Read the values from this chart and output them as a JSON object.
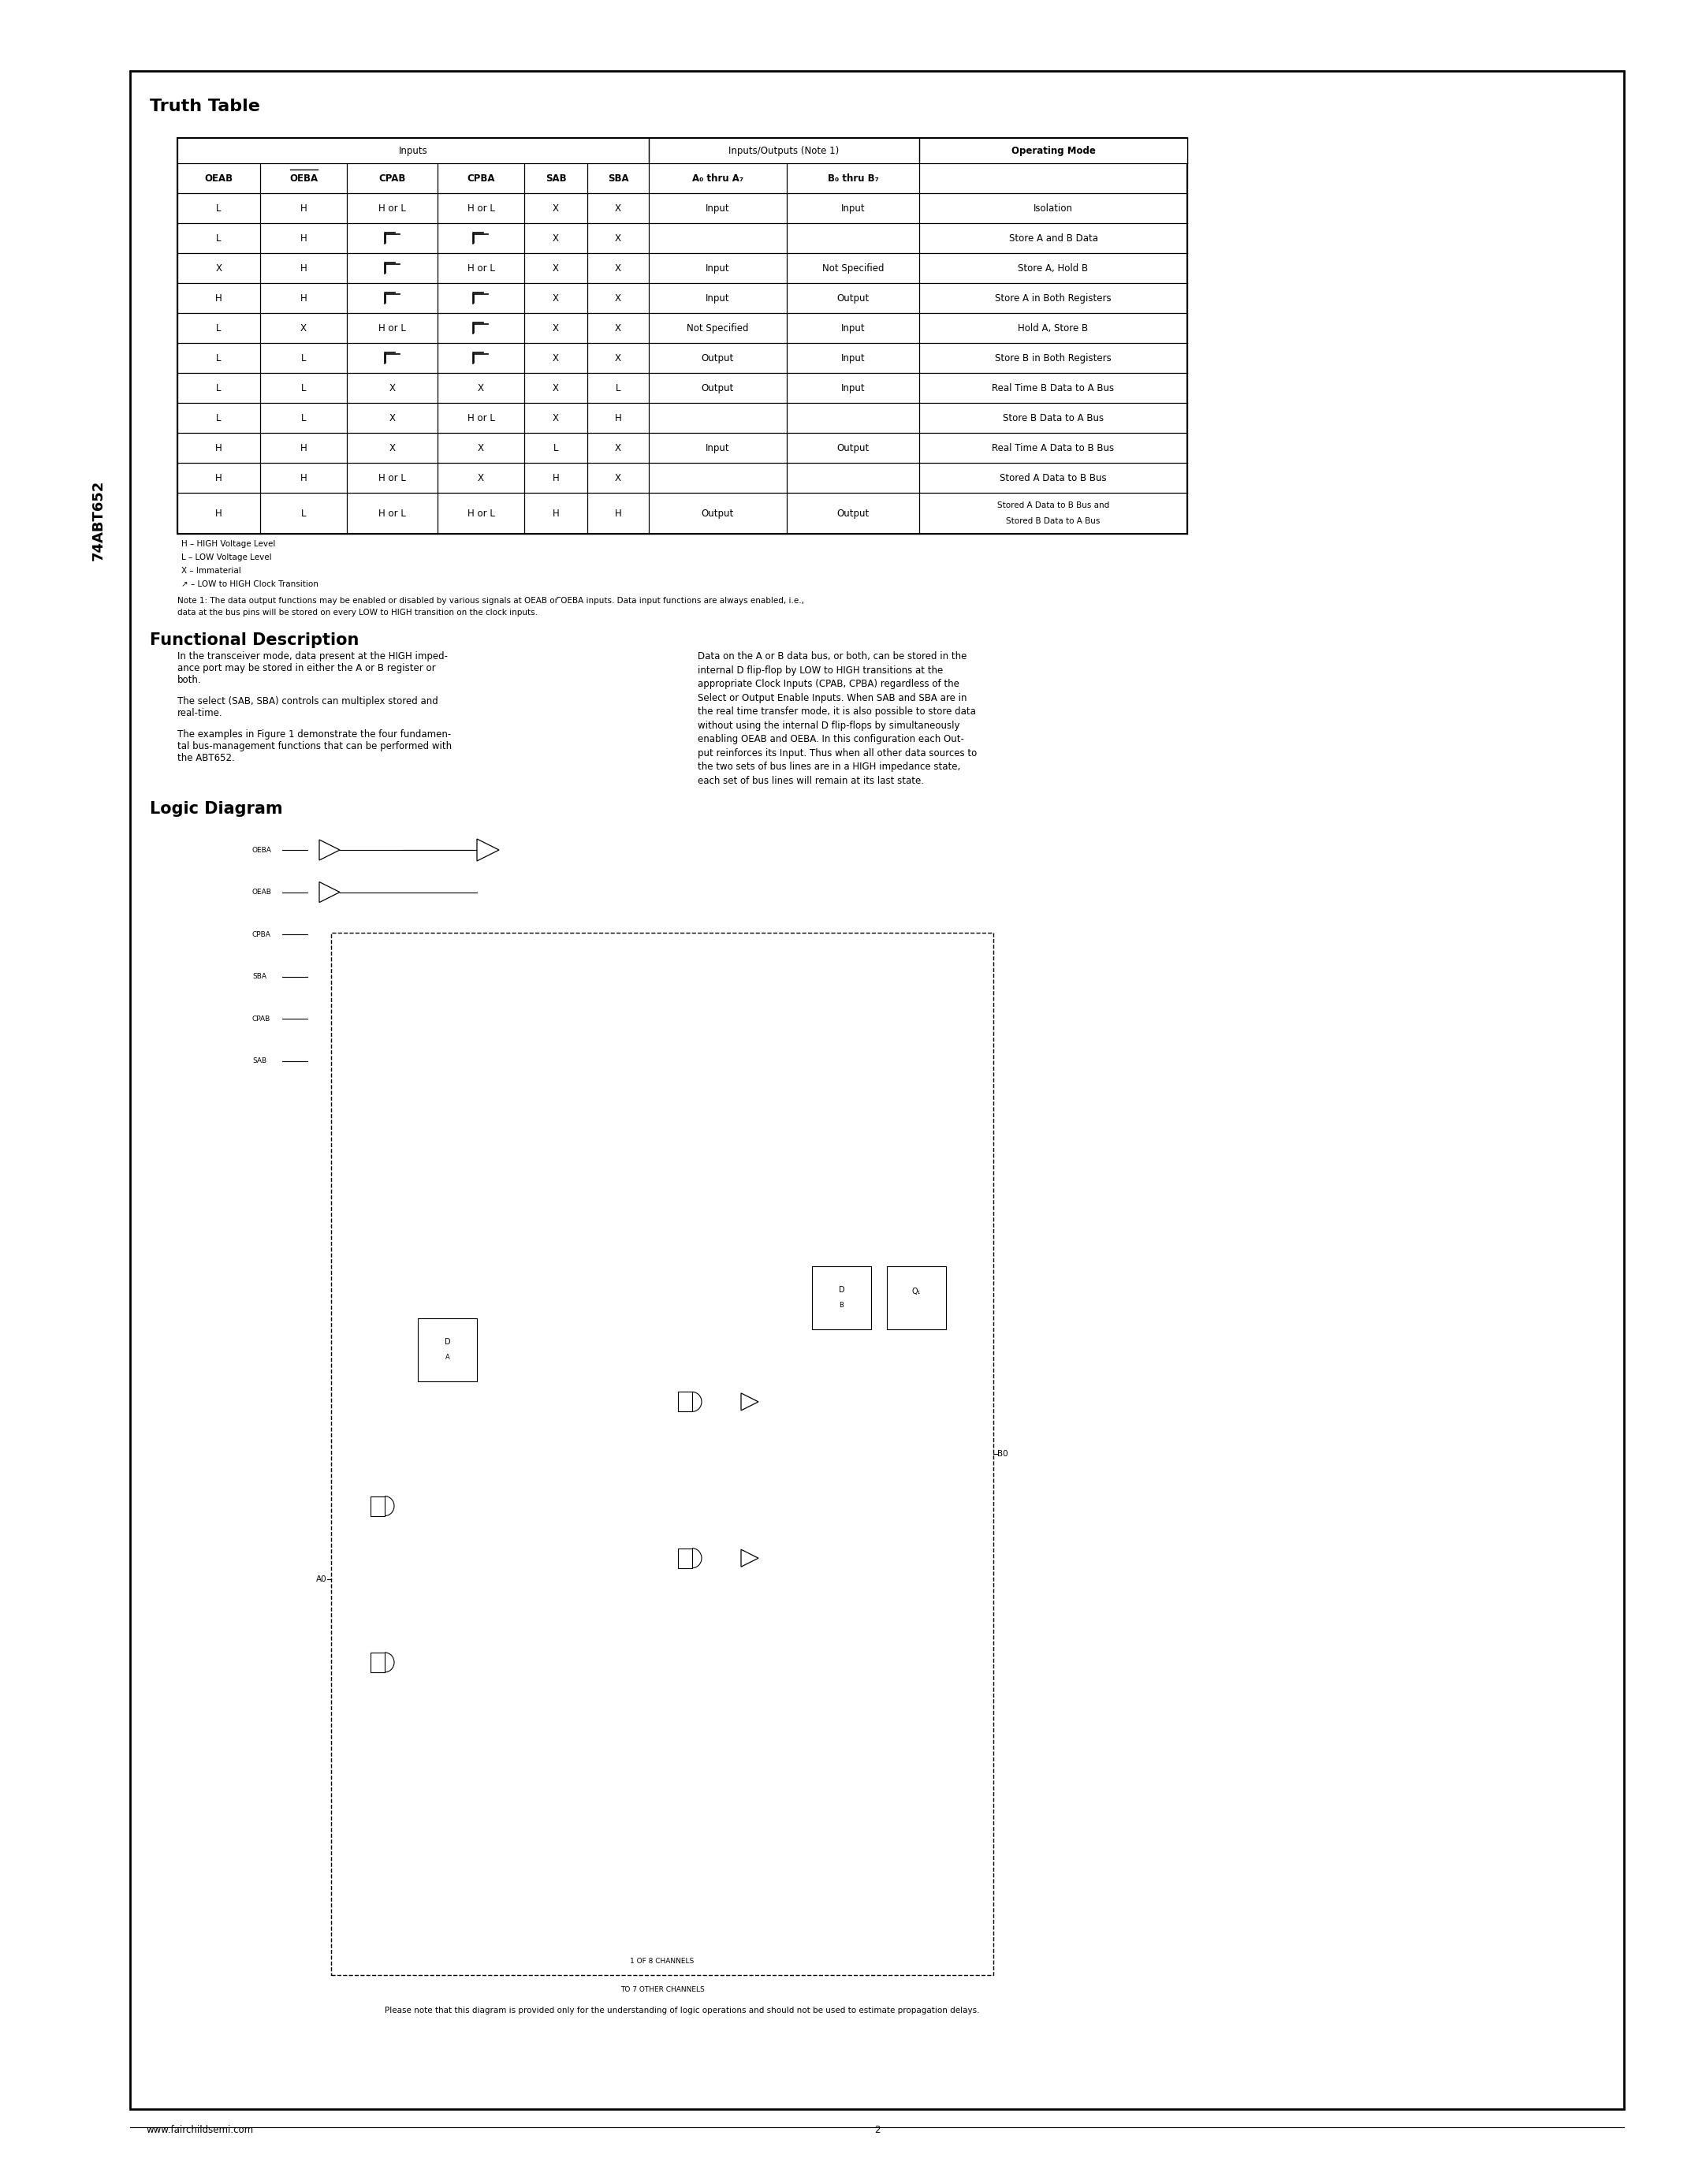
{
  "page_bg": "#ffffff",
  "truth_rows": [
    [
      "L",
      "H",
      "H or L",
      "H or L",
      "X",
      "X",
      "Input",
      "Input",
      "Isolation"
    ],
    [
      "L",
      "H",
      "↗",
      "↗",
      "X",
      "X",
      "",
      "",
      "Store A and B Data"
    ],
    [
      "X",
      "H",
      "↗",
      "H or L",
      "X",
      "X",
      "Input",
      "Not Specified",
      "Store A, Hold B"
    ],
    [
      "H",
      "H",
      "↗",
      "↗",
      "X",
      "X",
      "Input",
      "Output",
      "Store A in Both Registers"
    ],
    [
      "L",
      "X",
      "H or L",
      "↗",
      "X",
      "X",
      "Not Specified",
      "Input",
      "Hold A, Store B"
    ],
    [
      "L",
      "L",
      "↗",
      "↗",
      "X",
      "X",
      "Output",
      "Input",
      "Store B in Both Registers"
    ],
    [
      "L",
      "L",
      "X",
      "X",
      "X",
      "L",
      "Output",
      "Input",
      "Real Time B Data to A Bus"
    ],
    [
      "L",
      "L",
      "X",
      "H or L",
      "X",
      "H",
      "",
      "",
      "Store B Data to A Bus"
    ],
    [
      "H",
      "H",
      "X",
      "X",
      "L",
      "X",
      "Input",
      "Output",
      "Real Time A Data to B Bus"
    ],
    [
      "H",
      "H",
      "H or L",
      "X",
      "H",
      "X",
      "",
      "",
      "Stored A Data to B Bus"
    ],
    [
      "H",
      "L",
      "H or L",
      "H or L",
      "H",
      "H",
      "Output",
      "Output",
      "Stored A Data to B Bus and\nStored B Data to A Bus"
    ]
  ],
  "legend_lines": [
    "H – HIGH Voltage Level",
    "L – LOW Voltage Level",
    "X – Immaterial",
    "↗ – LOW to HIGH Clock Transition"
  ],
  "footer_url": "www.fairchildsemi.com",
  "footer_page": "2",
  "logic_caption": "Please note that this diagram is provided only for the understanding of logic operations and should not be used to estimate propagation delays."
}
